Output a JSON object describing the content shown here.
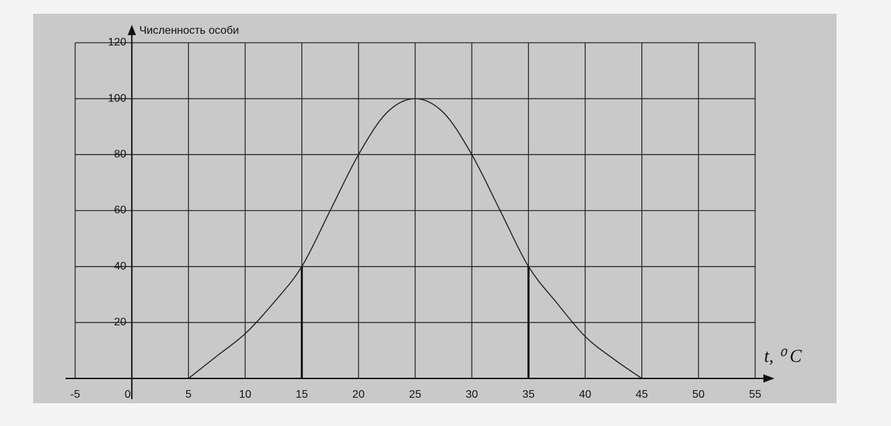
{
  "chart_data": {
    "type": "line",
    "y_label": "Численность особи",
    "x_label": "t, ⁰ C",
    "x": [
      5,
      7.5,
      10,
      12.5,
      15,
      17.5,
      20,
      22.5,
      25,
      27.5,
      30,
      32.5,
      35,
      37.5,
      40,
      42.5,
      45
    ],
    "values": [
      0,
      8,
      16,
      27,
      40,
      60,
      80,
      95,
      100,
      95,
      80,
      60,
      40,
      27,
      15,
      7,
      0
    ],
    "color": "#222222",
    "markers": [
      {
        "x": 15,
        "y": 40
      },
      {
        "x": 35,
        "y": 40
      }
    ],
    "xlim": [
      -5,
      55
    ],
    "ylim": [
      0,
      120
    ],
    "xticks": [
      -5,
      0,
      5,
      10,
      15,
      20,
      25,
      30,
      35,
      40,
      45,
      50,
      55
    ],
    "yticks": [
      20,
      40,
      60,
      80,
      100,
      120
    ],
    "grid": true
  }
}
